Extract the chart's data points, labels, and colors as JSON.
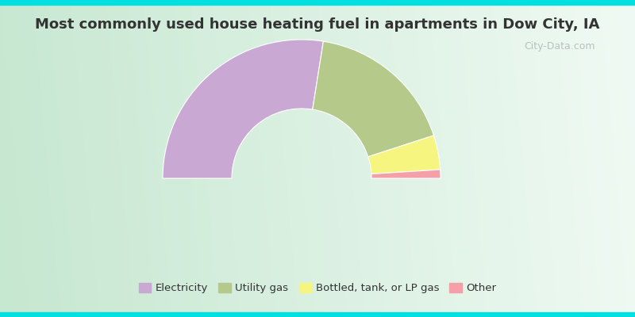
{
  "title": "Most commonly used house heating fuel in apartments in Dow City, IA",
  "segments": [
    {
      "label": "Electricity",
      "value": 55.0,
      "color": "#c9a8d4"
    },
    {
      "label": "Utility gas",
      "value": 35.0,
      "color": "#b5c98a"
    },
    {
      "label": "Bottled, tank, or LP gas",
      "value": 8.0,
      "color": "#f5f580"
    },
    {
      "label": "Other",
      "value": 2.0,
      "color": "#f5a0a8"
    }
  ],
  "bg_color_tl": "#c8e8d2",
  "bg_color_tr": "#e8f5ee",
  "bg_color_bl": "#d0edd8",
  "bg_color_br": "#f0f8f4",
  "border_color": "#00e0e0",
  "border_width": 0.015,
  "title_fontsize": 13,
  "legend_fontsize": 9.5,
  "watermark_text": "City-Data.com",
  "watermark_color": "#b0b8b8",
  "watermark_fontsize": 9
}
